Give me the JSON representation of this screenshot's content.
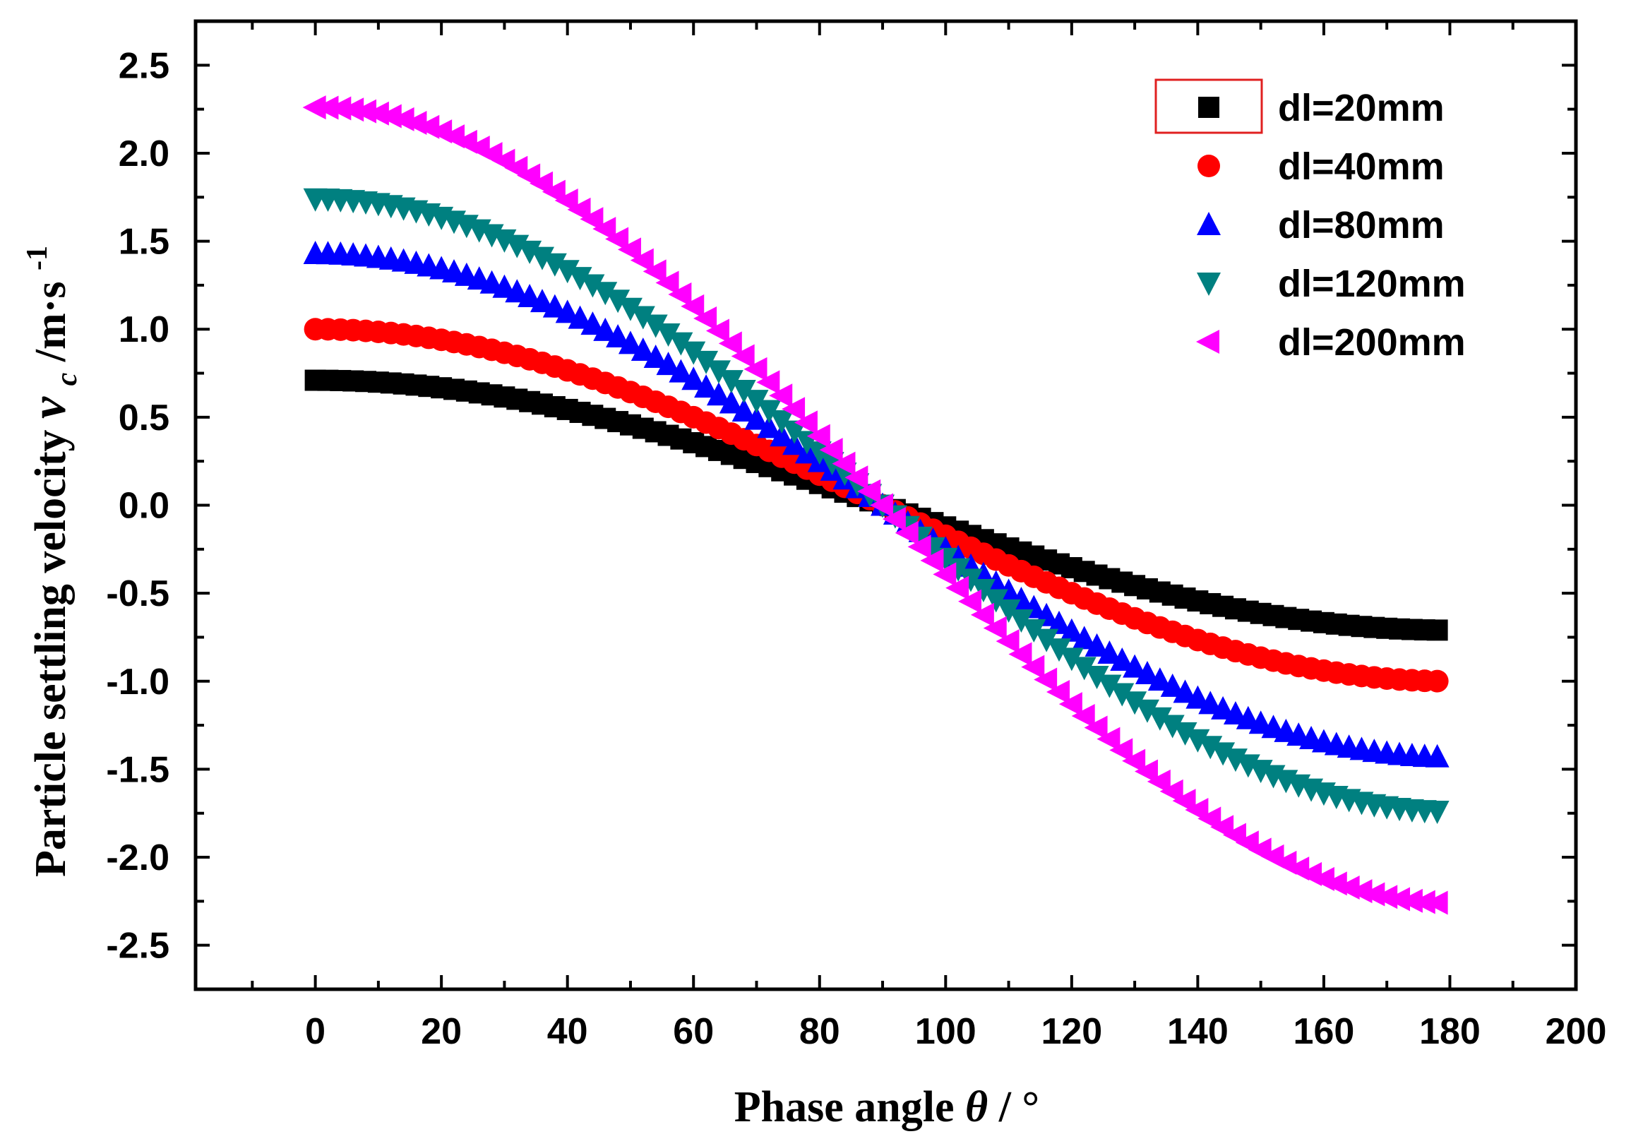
{
  "chart_data": {
    "type": "scatter",
    "xlabel": {
      "main": "Phase angle",
      "symbol": "θ",
      "unit": "/ °"
    },
    "ylabel": {
      "main": "Particle settling velocity",
      "symbol": "v",
      "subscript": "c",
      "unit": "/m·s",
      "superscript": "-1"
    },
    "xlim": [
      -19,
      200
    ],
    "ylim": [
      -2.75,
      2.75
    ],
    "xticks": [
      0,
      20,
      40,
      60,
      80,
      100,
      120,
      140,
      160,
      180,
      200
    ],
    "xtick_labels": [
      "0",
      "20",
      "40",
      "60",
      "80",
      "100",
      "120",
      "140",
      "160",
      "180",
      "200"
    ],
    "yticks": [
      -2.5,
      -2.0,
      -1.5,
      -1.0,
      -0.5,
      0.0,
      0.5,
      1.0,
      1.5,
      2.0,
      2.5
    ],
    "ytick_labels": [
      "-2.5",
      "-2.0",
      "-1.5",
      "-1.0",
      "-0.5",
      "0.0",
      "0.5",
      "1.0",
      "1.5",
      "2.0",
      "2.5"
    ],
    "grid": false,
    "legend_position": "top-right",
    "x_sampling": {
      "start": 0,
      "end": 179,
      "step": 2
    },
    "series": [
      {
        "name": "dl=20mm",
        "marker": "square",
        "color": "#000000",
        "amplitude": 0.71
      },
      {
        "name": "dl=40mm",
        "marker": "circle",
        "color": "#ff0000",
        "amplitude": 1.0
      },
      {
        "name": "dl=80mm",
        "marker": "triangle-up",
        "color": "#0000ff",
        "amplitude": 1.43
      },
      {
        "name": "dl=120mm",
        "marker": "triangle-down",
        "color": "#008080",
        "amplitude": 1.74
      },
      {
        "name": "dl=200mm",
        "marker": "triangle-left",
        "color": "#ff00ff",
        "amplitude": 2.26
      }
    ],
    "model": "v = amplitude * cos(theta)"
  }
}
